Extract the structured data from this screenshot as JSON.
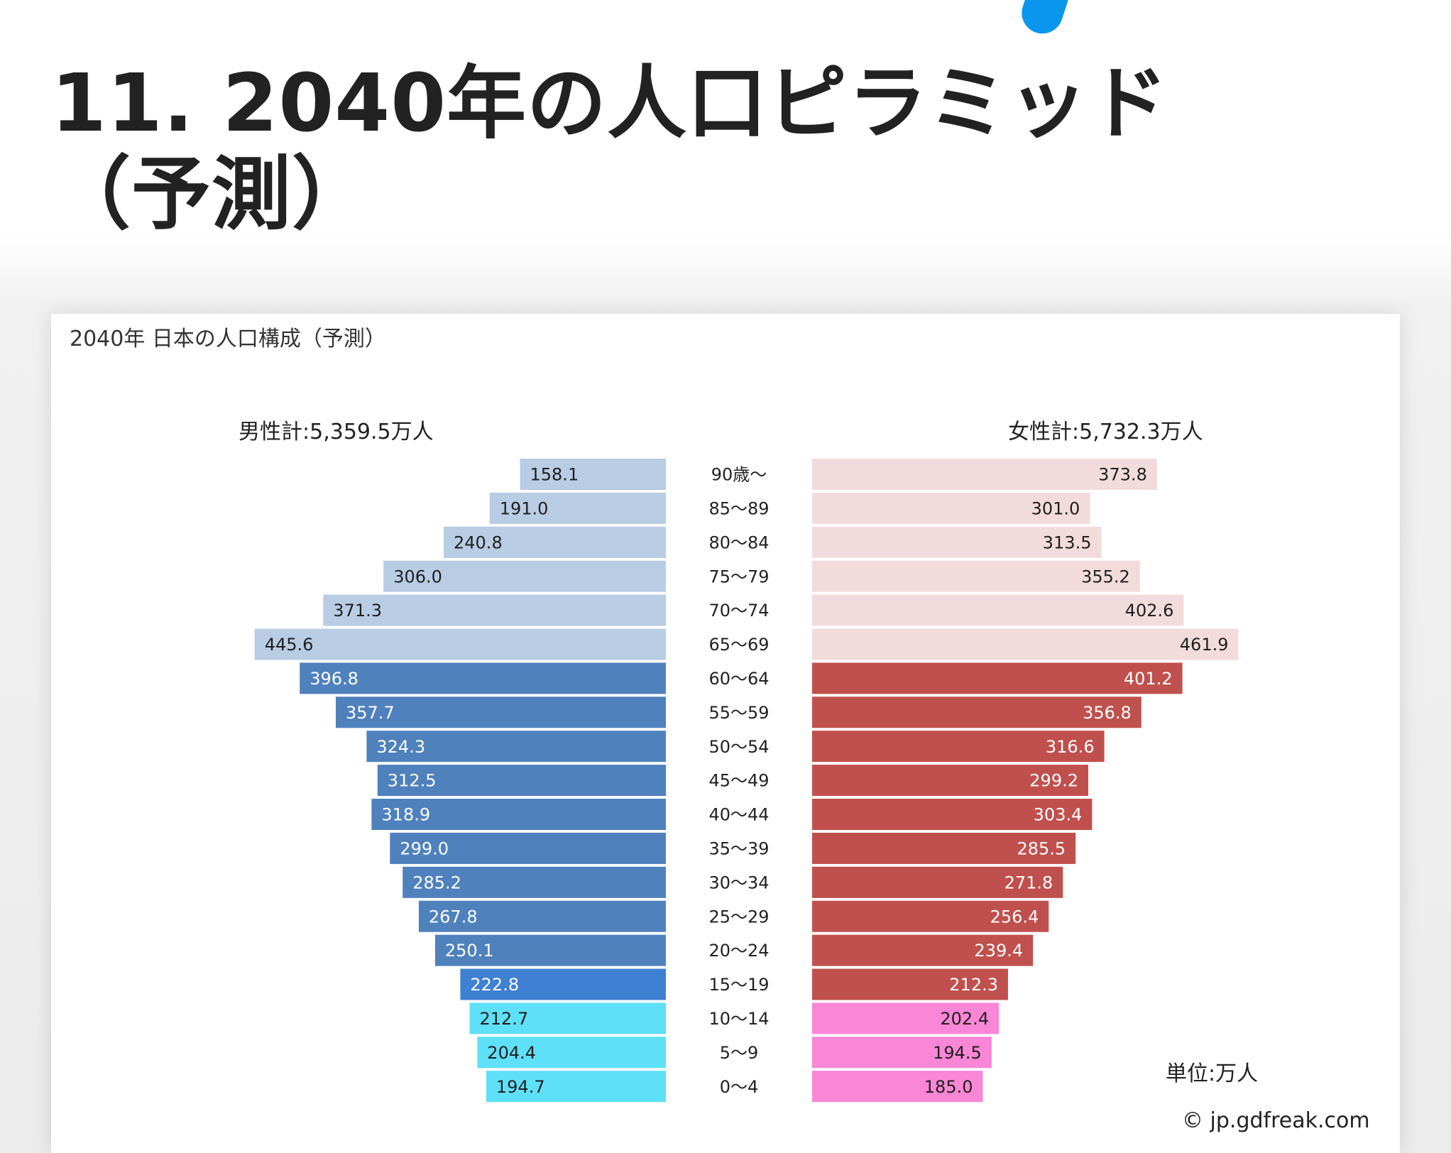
{
  "page": {
    "heading": "11. 2040年の人口ピラミッド（予測）"
  },
  "chart_data": {
    "type": "bar",
    "subtype": "population-pyramid",
    "title": "2040年 日本の人口構成（予測）",
    "male_total_label": "男性計:5,359.5万人",
    "female_total_label": "女性計:5,732.3万人",
    "unit_label": "単位:万人",
    "credit": "© jp.gdfreak.com",
    "categories": [
      "90歳〜",
      "85〜89",
      "80〜84",
      "75〜79",
      "70〜74",
      "65〜69",
      "60〜64",
      "55〜59",
      "50〜54",
      "45〜49",
      "40〜44",
      "35〜39",
      "30〜34",
      "25〜29",
      "20〜24",
      "15〜19",
      "10〜14",
      "5〜9",
      "0〜4"
    ],
    "series": [
      {
        "name": "男性",
        "side": "left",
        "values": [
          158.1,
          191.0,
          240.8,
          306.0,
          371.3,
          445.6,
          396.8,
          357.7,
          324.3,
          312.5,
          318.9,
          299.0,
          285.2,
          267.8,
          250.1,
          222.8,
          212.7,
          204.4,
          194.7
        ],
        "labels": [
          "158.1",
          "191.0",
          "240.8",
          "306.0",
          "371.3",
          "445.6",
          "396.8",
          "357.7",
          "324.3",
          "312.5",
          "318.9",
          "299.0",
          "285.2",
          "267.8",
          "250.1",
          "222.8",
          "212.7",
          "204.4",
          "194.7"
        ]
      },
      {
        "name": "女性",
        "side": "right",
        "values": [
          373.8,
          301.0,
          313.5,
          355.2,
          402.6,
          461.9,
          401.2,
          356.8,
          316.6,
          299.2,
          303.4,
          285.5,
          271.8,
          256.4,
          239.4,
          212.3,
          202.4,
          194.5,
          185.0
        ],
        "labels": [
          "373.8",
          "301.0",
          "313.5",
          "355.2",
          "402.6",
          "461.9",
          "401.2",
          "356.8",
          "316.6",
          "299.2",
          "303.4",
          "285.5",
          "271.8",
          "256.4",
          "239.4",
          "212.3",
          "202.4",
          "194.5",
          "185.0"
        ]
      }
    ],
    "colors": {
      "male_65_plus": "#b8cce4",
      "male_20_64": "#4f81bd",
      "male_15_19": "#3e80d2",
      "male_0_14": "#5ee0f8",
      "female_65_plus": "#f2dcdb",
      "female_15_64": "#c0504d",
      "female_0_14": "#f986d6",
      "dark_text": "#1f1f1f",
      "light_text": "#ffffff"
    },
    "legend": "none",
    "grid": false
  }
}
